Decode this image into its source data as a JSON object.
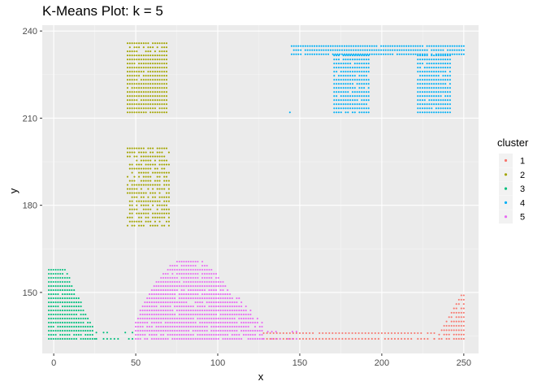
{
  "chart_data": {
    "type": "scatter",
    "title": "K-Means Plot: k =  5",
    "xlabel": "x",
    "ylabel": "y",
    "xlim": [
      -7,
      259
    ],
    "ylim": [
      129,
      242
    ],
    "xticks": [
      0,
      50,
      100,
      150,
      200,
      250
    ],
    "yticks": [
      150,
      180,
      210,
      240
    ],
    "grid": true,
    "legend": {
      "title": "cluster",
      "placement": "right",
      "entries": [
        "1",
        "2",
        "3",
        "4",
        "5"
      ]
    },
    "series": [
      {
        "name": "1",
        "color": "#F8766D",
        "regions": [
          {
            "x": [
              128,
              232
            ],
            "y": [
              134,
              137
            ],
            "step": 2
          },
          {
            "x": [
              232,
              250
            ],
            "y": [
              134,
              150
            ],
            "step": 1.5,
            "shape": "ramp-right"
          }
        ]
      },
      {
        "name": "2",
        "color": "#A3A500",
        "regions": [
          {
            "x": [
              45,
              69
            ],
            "y": [
              212,
              236
            ],
            "step": 1.4
          },
          {
            "x": [
              45,
              71
            ],
            "y": [
              173,
              200
            ],
            "step": 1.4,
            "shape": "ragged"
          }
        ]
      },
      {
        "name": "3",
        "color": "#00BF7D",
        "regions": [
          {
            "x": [
              -3,
              26
            ],
            "y": [
              134,
              158
            ],
            "step": 1.4,
            "shape": "decay"
          },
          {
            "x": [
              26,
              50
            ],
            "y": [
              134,
              138
            ],
            "step": 2.2,
            "shape": "sparse"
          }
        ]
      },
      {
        "name": "4",
        "color": "#00B0F6",
        "regions": [
          {
            "x": [
              145,
              250
            ],
            "y": [
              232,
              236
            ],
            "step": 1.4
          },
          {
            "x": [
              171,
              193
            ],
            "y": [
              212,
              232
            ],
            "step": 1.4
          },
          {
            "x": [
              222,
              242
            ],
            "y": [
              212,
              232
            ],
            "step": 1.4
          },
          {
            "x": [
              144,
              145
            ],
            "y": [
              212,
              219
            ],
            "step": 7,
            "shape": "sparse"
          }
        ]
      },
      {
        "name": "5",
        "color": "#E76BF3",
        "regions": [
          {
            "x": [
              50,
              128
            ],
            "y": [
              134,
              162
            ],
            "step": 1.4,
            "shape": "hill"
          },
          {
            "x": [
              128,
              150
            ],
            "y": [
              134,
              137
            ],
            "step": 2.5,
            "shape": "sparse"
          }
        ]
      }
    ]
  }
}
